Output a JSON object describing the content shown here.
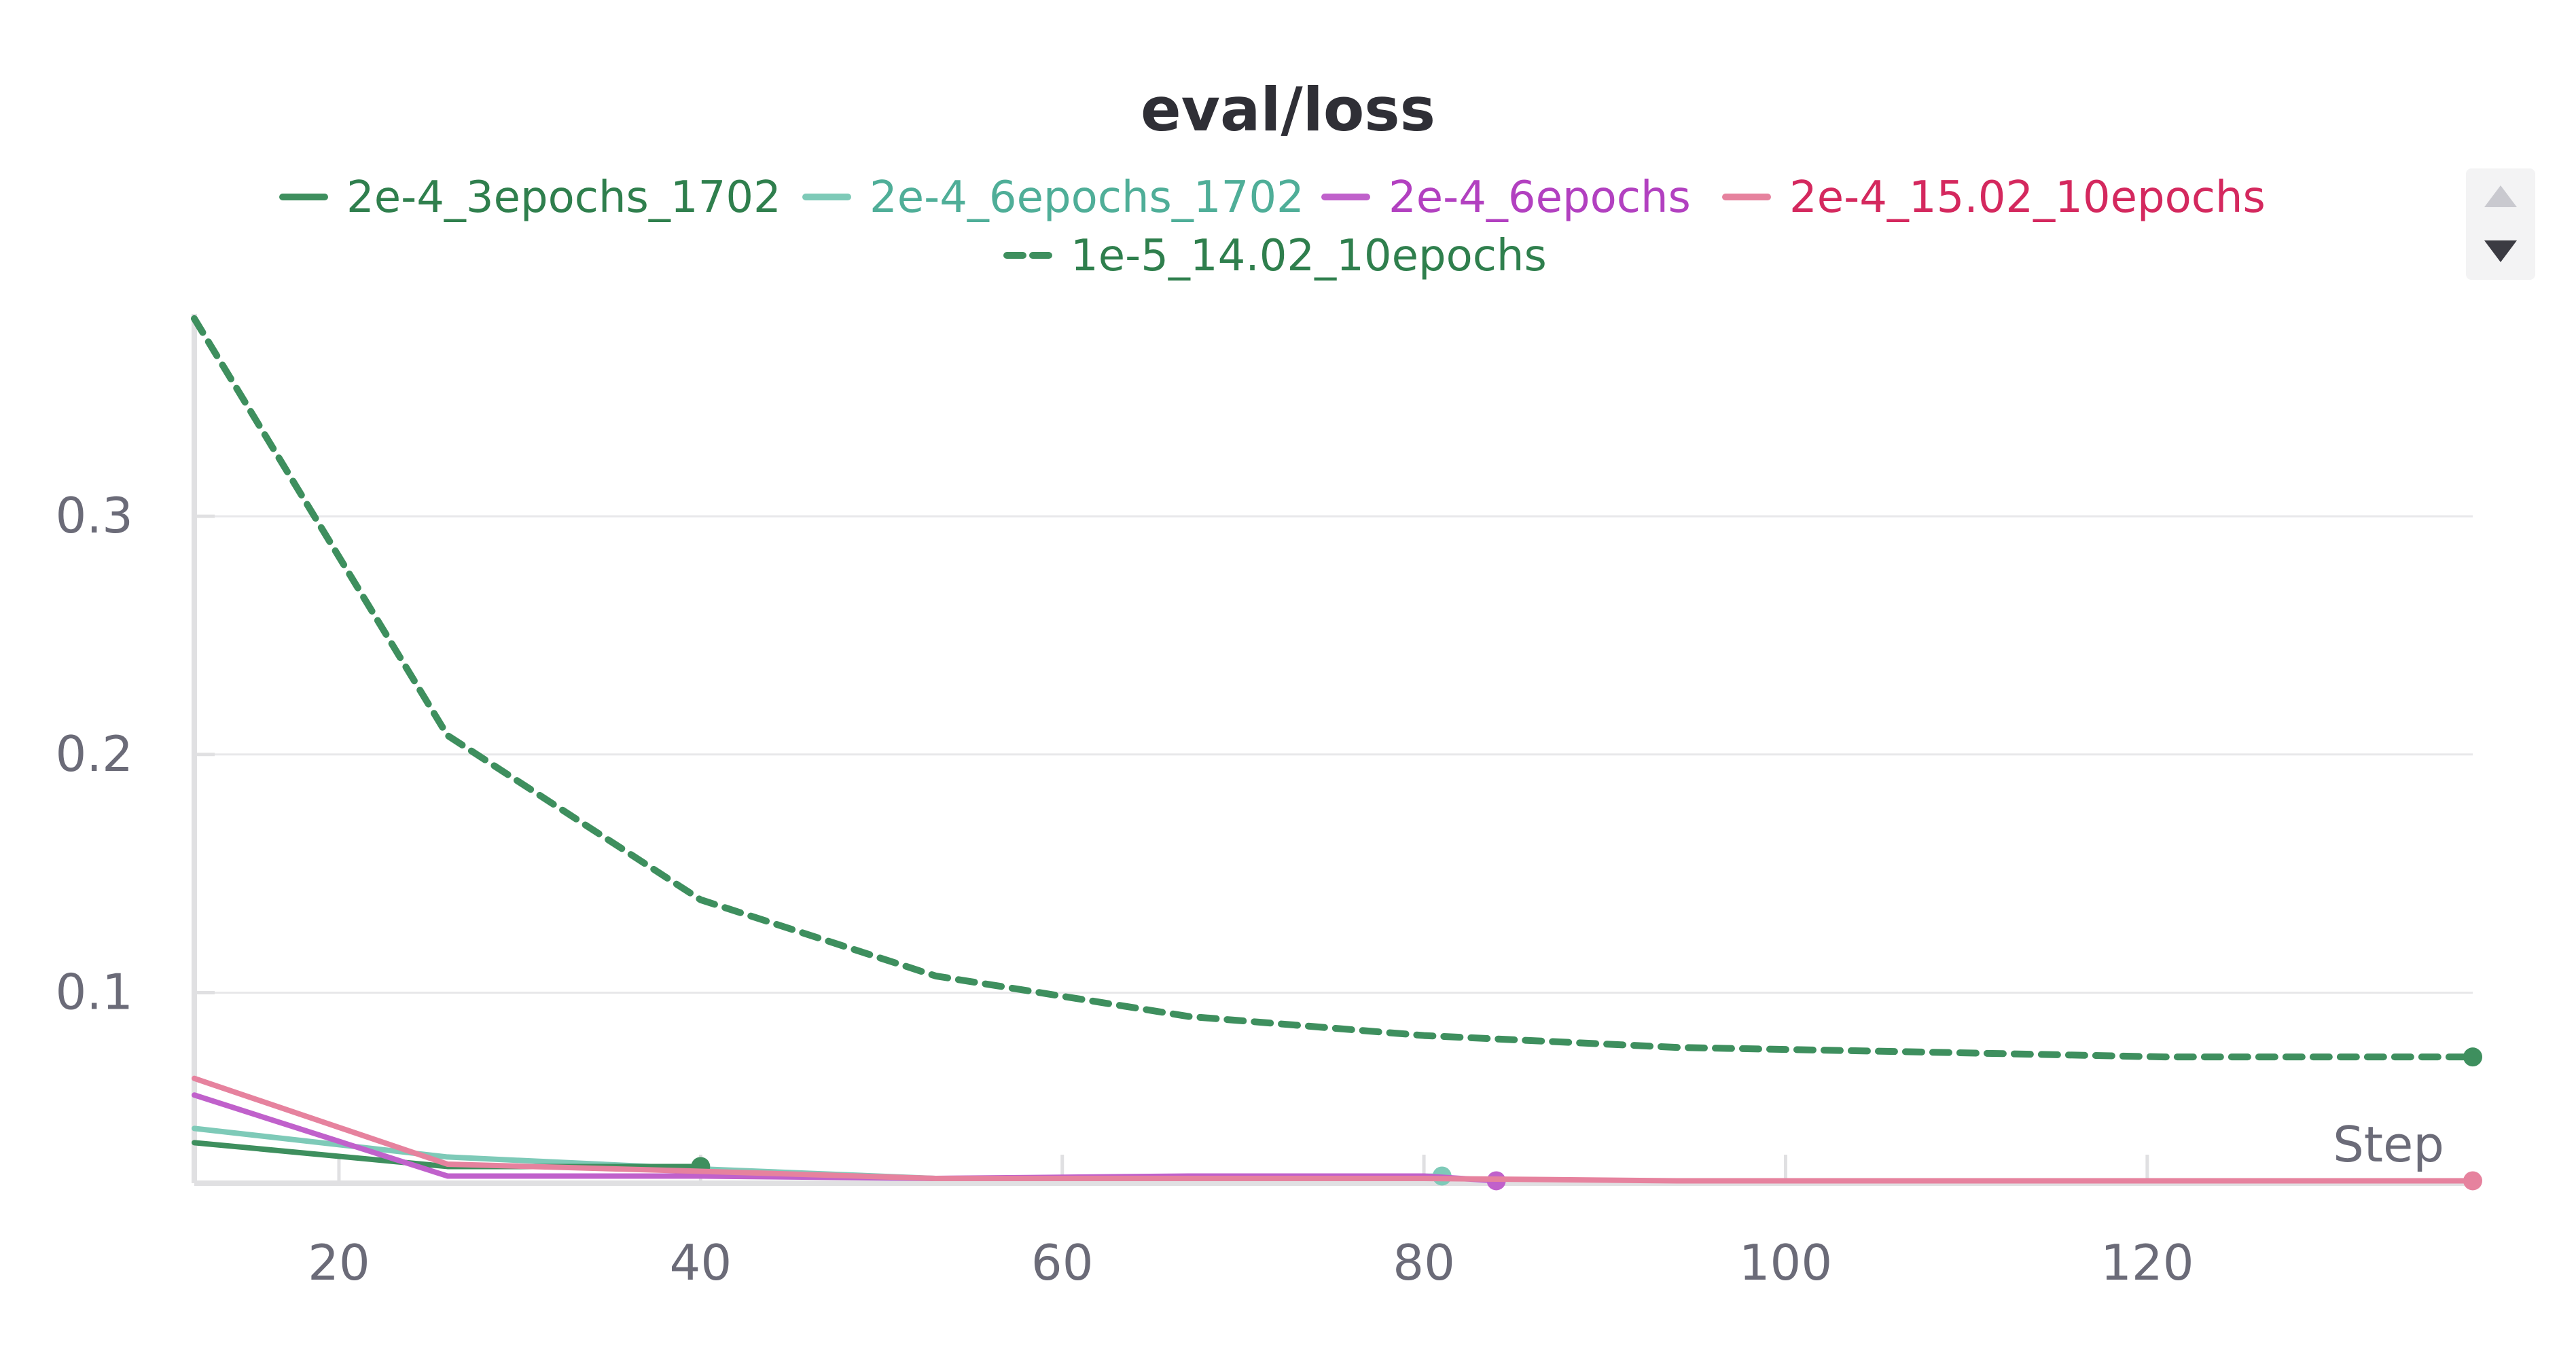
{
  "chart_data": {
    "type": "line",
    "title": "eval/loss",
    "xlabel": "Step",
    "ylabel": "",
    "xlim": [
      12,
      138
    ],
    "ylim": [
      0.02,
      0.385
    ],
    "x_ticks": [
      20,
      40,
      60,
      80,
      100,
      120
    ],
    "y_ticks": [
      0.1,
      0.2,
      0.3
    ],
    "grid": true,
    "legend_position": "top",
    "series": [
      {
        "name": "2e-4_3epochs_1702",
        "color": "#3e8f5e",
        "text_color": "#2f7f4d",
        "dash": "solid",
        "x": [
          12,
          26,
          40
        ],
        "y": [
          0.037,
          0.027,
          0.027
        ],
        "end_marker": true
      },
      {
        "name": "2e-4_6epochs_1702",
        "color": "#7ecab8",
        "text_color": "#4fae98",
        "dash": "solid",
        "x": [
          12,
          26,
          40,
          53,
          67,
          81
        ],
        "y": [
          0.043,
          0.031,
          0.026,
          0.022,
          0.022,
          0.023
        ],
        "end_marker": true
      },
      {
        "name": "2e-4_6epochs",
        "color": "#c061cb",
        "text_color": "#b240c0",
        "dash": "solid",
        "x": [
          12,
          26,
          40,
          53,
          67,
          80,
          84
        ],
        "y": [
          0.057,
          0.023,
          0.023,
          0.022,
          0.023,
          0.023,
          0.021
        ],
        "end_marker": true
      },
      {
        "name": "2e-4_15.02_10epochs",
        "color": "#e6829e",
        "text_color": "#d4285e",
        "dash": "solid",
        "x": [
          12,
          26,
          40,
          53,
          67,
          80,
          94,
          108,
          121,
          138
        ],
        "y": [
          0.064,
          0.028,
          0.025,
          0.022,
          0.022,
          0.022,
          0.021,
          0.021,
          0.021,
          0.021
        ],
        "end_marker": true
      },
      {
        "name": "1e-5_14.02_10epochs",
        "color": "#3e8f5e",
        "text_color": "#2f7f4d",
        "dash": "dashed",
        "x": [
          12,
          26,
          40,
          53,
          67,
          80,
          94,
          108,
          121,
          138
        ],
        "y": [
          0.383,
          0.208,
          0.139,
          0.107,
          0.09,
          0.082,
          0.077,
          0.075,
          0.073,
          0.073
        ],
        "end_marker": true
      }
    ]
  }
}
